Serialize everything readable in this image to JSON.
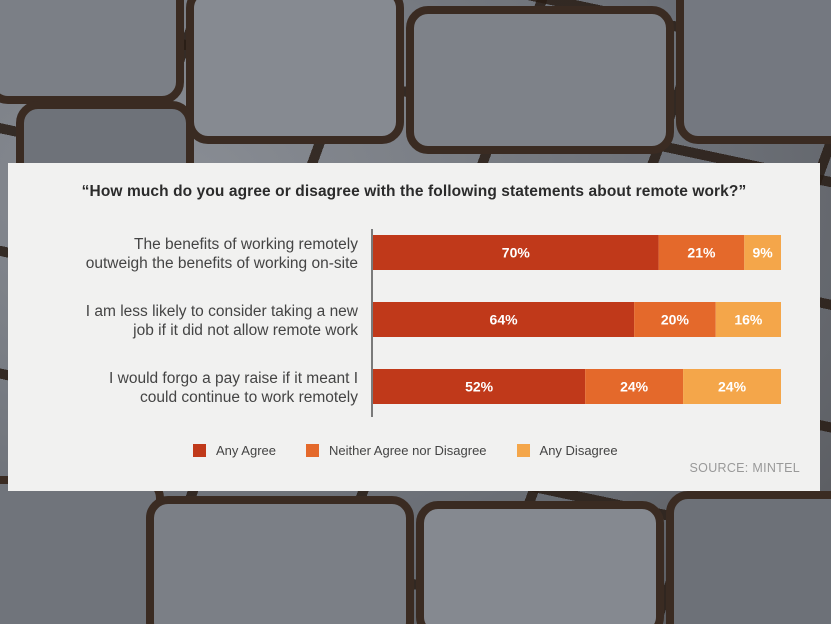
{
  "chart_data": {
    "type": "bar",
    "orientation": "horizontal",
    "stacked": true,
    "title": "“How much do you agree or disagree with the following statements about remote work?”",
    "categories": [
      [
        "The benefits of working remotely",
        "outweigh the benefits of working on-site"
      ],
      [
        "I am less likely to consider taking a new",
        "job if it did not allow remote work"
      ],
      [
        "I would forgo a pay raise if it meant I",
        "could continue to work remotely"
      ]
    ],
    "series": [
      {
        "name": "Any Agree",
        "values": [
          70,
          64,
          52
        ],
        "labels": [
          "70%",
          "64%",
          "52%"
        ],
        "color": "#c0391a"
      },
      {
        "name": "Neither Agree nor Disagree",
        "values": [
          21,
          20,
          24
        ],
        "labels": [
          "21%",
          "20%",
          "24%"
        ],
        "color": "#e4692b"
      },
      {
        "name": "Any Disagree",
        "values": [
          9,
          16,
          24
        ],
        "labels": [
          "9%",
          "16%",
          "24%"
        ],
        "color": "#f4a64a"
      }
    ],
    "xlim": [
      0,
      100
    ],
    "legend_position": "bottom",
    "grid": false,
    "source": "SOURCE: MINTEL"
  }
}
